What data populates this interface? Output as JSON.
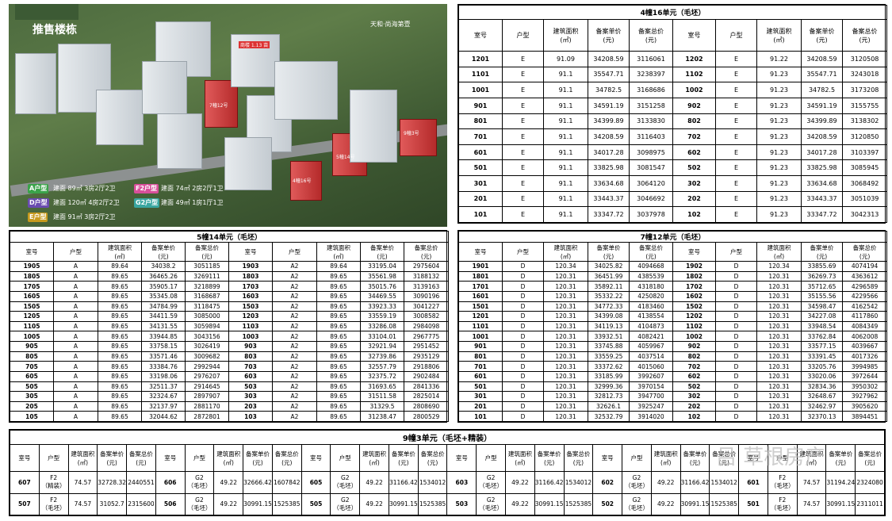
{
  "aerial": {
    "title": "推售楼栋",
    "logo": "天和·尚海第壹",
    "top_label": "商楼 1.13 亩",
    "building_labels": [
      "7幢12号",
      "5幢14号",
      "4幢16号",
      "9幢3号"
    ],
    "legend": [
      {
        "tag": "A户型",
        "text": "建面 89㎡ 3房2厅2卫",
        "color": "#3aa34a"
      },
      {
        "tag": "D户型",
        "text": "建面 120㎡ 4房2厅2卫",
        "color": "#6a4bb0"
      },
      {
        "tag": "E户型",
        "text": "建面 91㎡ 3房2厅2卫",
        "color": "#c79a1d"
      },
      {
        "tag": "F2户型",
        "text": "建面 74㎡ 2房2厅1卫",
        "color": "#d84f9a"
      },
      {
        "tag": "G2户型",
        "text": "建面 49㎡ 1房1厅1卫",
        "color": "#3aa6a0"
      }
    ]
  },
  "headers": {
    "room": "室号",
    "type": "户型",
    "area1": "建筑面积",
    "area2": "(㎡)",
    "unit1": "备案单价",
    "unit2": "(元)",
    "total1": "备案总价",
    "total2": "(元)"
  },
  "b4": {
    "title": "4幢16单元（毛坯）",
    "rows": [
      [
        "1201",
        "E",
        "91.09",
        "34208.59",
        "3116061",
        "1202",
        "E",
        "91.22",
        "34208.59",
        "3120508"
      ],
      [
        "1101",
        "E",
        "91.1",
        "35547.71",
        "3238397",
        "1102",
        "E",
        "91.23",
        "35547.71",
        "3243018"
      ],
      [
        "1001",
        "E",
        "91.1",
        "34782.5",
        "3168686",
        "1002",
        "E",
        "91.23",
        "34782.5",
        "3173208"
      ],
      [
        "901",
        "E",
        "91.1",
        "34591.19",
        "3151258",
        "902",
        "E",
        "91.23",
        "34591.19",
        "3155755"
      ],
      [
        "801",
        "E",
        "91.1",
        "34399.89",
        "3133830",
        "802",
        "E",
        "91.23",
        "34399.89",
        "3138302"
      ],
      [
        "701",
        "E",
        "91.1",
        "34208.59",
        "3116403",
        "702",
        "E",
        "91.23",
        "34208.59",
        "3120850"
      ],
      [
        "601",
        "E",
        "91.1",
        "34017.28",
        "3098975",
        "602",
        "E",
        "91.23",
        "34017.28",
        "3103397"
      ],
      [
        "501",
        "E",
        "91.1",
        "33825.98",
        "3081547",
        "502",
        "E",
        "91.23",
        "33825.98",
        "3085945"
      ],
      [
        "301",
        "E",
        "91.1",
        "33634.68",
        "3064120",
        "302",
        "E",
        "91.23",
        "33634.68",
        "3068492"
      ],
      [
        "201",
        "E",
        "91.1",
        "33443.37",
        "3046692",
        "202",
        "E",
        "91.23",
        "33443.37",
        "3051039"
      ],
      [
        "101",
        "E",
        "91.1",
        "33347.72",
        "3037978",
        "102",
        "E",
        "91.23",
        "33347.72",
        "3042313"
      ]
    ]
  },
  "b5": {
    "title": "5幢14单元（毛坯）",
    "rows": [
      [
        "1905",
        "A",
        "89.64",
        "34038.2",
        "3051185",
        "1903",
        "A2",
        "89.64",
        "33195.04",
        "2975604"
      ],
      [
        "1805",
        "A",
        "89.65",
        "36465.26",
        "3269111",
        "1803",
        "A2",
        "89.65",
        "35561.98",
        "3188132"
      ],
      [
        "1705",
        "A",
        "89.65",
        "35905.17",
        "3218899",
        "1703",
        "A2",
        "89.65",
        "35015.76",
        "3139163"
      ],
      [
        "1605",
        "A",
        "89.65",
        "35345.08",
        "3168687",
        "1603",
        "A2",
        "89.65",
        "34469.55",
        "3090196"
      ],
      [
        "1505",
        "A",
        "89.65",
        "34784.99",
        "3118475",
        "1503",
        "A2",
        "89.65",
        "33923.33",
        "3041227"
      ],
      [
        "1205",
        "A",
        "89.65",
        "34411.59",
        "3085000",
        "1203",
        "A2",
        "89.65",
        "33559.19",
        "3008582"
      ],
      [
        "1105",
        "A",
        "89.65",
        "34131.55",
        "3059894",
        "1103",
        "A2",
        "89.65",
        "33286.08",
        "2984098"
      ],
      [
        "1005",
        "A",
        "89.65",
        "33944.85",
        "3043156",
        "1003",
        "A2",
        "89.65",
        "33104.01",
        "2967775"
      ],
      [
        "905",
        "A",
        "89.65",
        "33758.15",
        "3026419",
        "903",
        "A2",
        "89.65",
        "32921.94",
        "2951452"
      ],
      [
        "805",
        "A",
        "89.65",
        "33571.46",
        "3009682",
        "803",
        "A2",
        "89.65",
        "32739.86",
        "2935129"
      ],
      [
        "705",
        "A",
        "89.65",
        "33384.76",
        "2992944",
        "703",
        "A2",
        "89.65",
        "32557.79",
        "2918806"
      ],
      [
        "605",
        "A",
        "89.65",
        "33198.06",
        "2976207",
        "603",
        "A2",
        "89.65",
        "32375.72",
        "2902484"
      ],
      [
        "505",
        "A",
        "89.65",
        "32511.37",
        "2914645",
        "503",
        "A2",
        "89.65",
        "31693.65",
        "2841336"
      ],
      [
        "305",
        "A",
        "89.65",
        "32324.67",
        "2897907",
        "303",
        "A2",
        "89.65",
        "31511.58",
        "2825014"
      ],
      [
        "205",
        "A",
        "89.65",
        "32137.97",
        "2881170",
        "203",
        "A2",
        "89.65",
        "31329.5",
        "2808690"
      ],
      [
        "105",
        "A",
        "89.65",
        "32044.62",
        "2872801",
        "103",
        "A2",
        "89.65",
        "31238.47",
        "2800529"
      ]
    ]
  },
  "b7": {
    "title": "7幢12单元（毛坯）",
    "rows": [
      [
        "1901",
        "D",
        "120.34",
        "34025.82",
        "4094668",
        "1902",
        "D",
        "120.34",
        "33855.69",
        "4074194"
      ],
      [
        "1801",
        "D",
        "120.31",
        "36451.99",
        "4385539",
        "1802",
        "D",
        "120.31",
        "36269.73",
        "4363612"
      ],
      [
        "1701",
        "D",
        "120.31",
        "35892.11",
        "4318180",
        "1702",
        "D",
        "120.31",
        "35712.65",
        "4296589"
      ],
      [
        "1601",
        "D",
        "120.31",
        "35332.22",
        "4250820",
        "1602",
        "D",
        "120.31",
        "35155.56",
        "4229566"
      ],
      [
        "1501",
        "D",
        "120.31",
        "34772.33",
        "4183460",
        "1502",
        "D",
        "120.31",
        "34598.47",
        "4162542"
      ],
      [
        "1201",
        "D",
        "120.31",
        "34399.08",
        "4138554",
        "1202",
        "D",
        "120.31",
        "34227.08",
        "4117860"
      ],
      [
        "1101",
        "D",
        "120.31",
        "34119.13",
        "4104873",
        "1102",
        "D",
        "120.31",
        "33948.54",
        "4084349"
      ],
      [
        "1001",
        "D",
        "120.31",
        "33932.51",
        "4082421",
        "1002",
        "D",
        "120.31",
        "33762.84",
        "4062008"
      ],
      [
        "901",
        "D",
        "120.31",
        "33745.88",
        "4059967",
        "902",
        "D",
        "120.31",
        "33577.15",
        "4039667"
      ],
      [
        "801",
        "D",
        "120.31",
        "33559.25",
        "4037514",
        "802",
        "D",
        "120.31",
        "33391.45",
        "4017326"
      ],
      [
        "701",
        "D",
        "120.31",
        "33372.62",
        "4015060",
        "702",
        "D",
        "120.31",
        "33205.76",
        "3994985"
      ],
      [
        "601",
        "D",
        "120.31",
        "33185.99",
        "3992607",
        "602",
        "D",
        "120.31",
        "33020.06",
        "3972644"
      ],
      [
        "501",
        "D",
        "120.31",
        "32999.36",
        "3970154",
        "502",
        "D",
        "120.31",
        "32834.36",
        "3950302"
      ],
      [
        "301",
        "D",
        "120.31",
        "32812.73",
        "3947700",
        "302",
        "D",
        "120.31",
        "32648.67",
        "3927962"
      ],
      [
        "201",
        "D",
        "120.31",
        "32626.1",
        "3925247",
        "202",
        "D",
        "120.31",
        "32462.97",
        "3905620"
      ],
      [
        "101",
        "D",
        "120.31",
        "32532.79",
        "3914020",
        "102",
        "D",
        "120.31",
        "32370.13",
        "3894451"
      ]
    ]
  },
  "b9": {
    "title": "9幢3单元（毛坯+精装）",
    "rows": [
      {
        "cells": [
          {
            "room": "607",
            "type": [
              "F2",
              "（精装）"
            ],
            "area": "74.57",
            "unit": "32728.32",
            "total": "2440551"
          },
          {
            "room": "606",
            "type": [
              "G2",
              "（毛坯）"
            ],
            "area": "49.22",
            "unit": "32666.42",
            "total": "1607842"
          },
          {
            "room": "605",
            "type": [
              "G2",
              "（毛坯）"
            ],
            "area": "49.22",
            "unit": "31166.42",
            "total": "1534012"
          },
          {
            "room": "603",
            "type": [
              "G2",
              "（毛坯）"
            ],
            "area": "49.22",
            "unit": "31166.42",
            "total": "1534012"
          },
          {
            "room": "602",
            "type": [
              "G2",
              "（毛坯）"
            ],
            "area": "49.22",
            "unit": "31166.42",
            "total": "1534012"
          },
          {
            "room": "601",
            "type": [
              "F2",
              "（毛坯）"
            ],
            "area": "74.57",
            "unit": "31194.24",
            "total": "2324080"
          }
        ]
      },
      {
        "cells": [
          {
            "room": "507",
            "type": [
              "F2",
              "（毛坯）"
            ],
            "area": "74.57",
            "unit": "31052.7",
            "total": "2315600"
          },
          {
            "room": "506",
            "type": [
              "G2",
              "（毛坯）"
            ],
            "area": "49.22",
            "unit": "30991.15",
            "total": "1525385"
          },
          {
            "room": "505",
            "type": [
              "G2",
              "（毛坯）"
            ],
            "area": "49.22",
            "unit": "30991.15",
            "total": "1525385"
          },
          {
            "room": "503",
            "type": [
              "G2",
              "（毛坯）"
            ],
            "area": "49.22",
            "unit": "30991.15",
            "total": "1525385"
          },
          {
            "room": "502",
            "type": [
              "G2",
              "（毛坯）"
            ],
            "area": "49.22",
            "unit": "30991.15",
            "total": "1525385"
          },
          {
            "room": "501",
            "type": [
              "F2",
              "（毛坯）"
            ],
            "area": "74.57",
            "unit": "30991.15",
            "total": "2311011"
          }
        ]
      }
    ]
  },
  "watermark": "吕 草根房产"
}
